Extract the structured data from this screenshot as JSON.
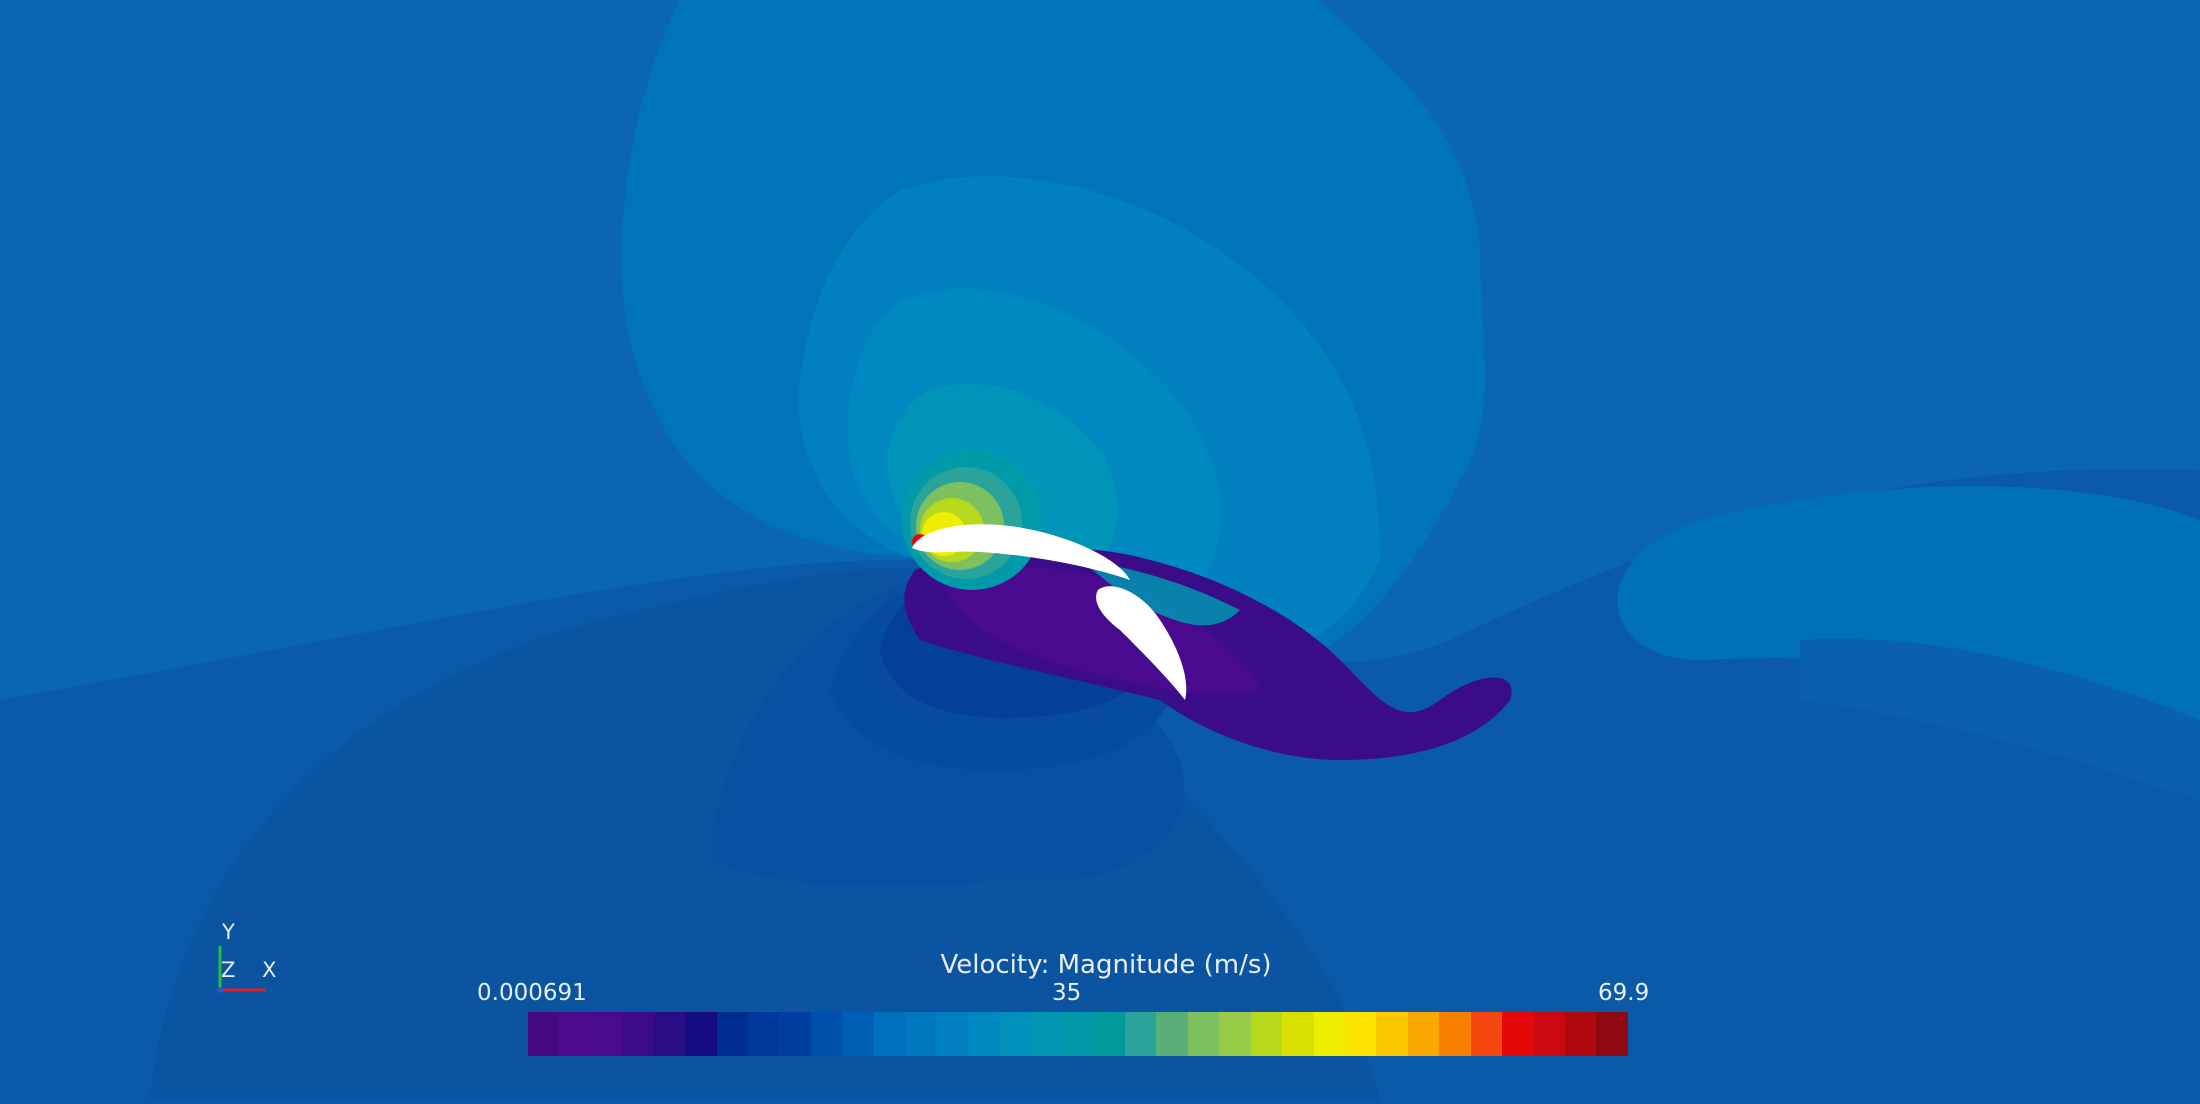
{
  "legend": {
    "title": "Velocity: Magnitude (m/s)",
    "min_label": "0.000691",
    "mid_label": "35",
    "max_label": "69.9",
    "range": [
      0.000691,
      69.9
    ],
    "colors": [
      "#44087f",
      "#4d0a8c",
      "#4a0a8e",
      "#3c0b8a",
      "#2a0c86",
      "#140c80",
      "#002e90",
      "#00379a",
      "#003fa0",
      "#0050ac",
      "#005fb4",
      "#0070bc",
      "#0077bf",
      "#0080c0",
      "#0088c0",
      "#0090bc",
      "#0096b4",
      "#0098a8",
      "#009a9c",
      "#2aa49a",
      "#5aae7a",
      "#7cc060",
      "#98cc48",
      "#b8d81c",
      "#d8e000",
      "#f0ee00",
      "#fce200",
      "#fcc800",
      "#f8a800",
      "#f88000",
      "#f44810",
      "#e40808",
      "#cc0810",
      "#b00810",
      "#900810"
    ]
  },
  "axes_triad": {
    "y": "Y",
    "z": "Z",
    "x": "X"
  }
}
